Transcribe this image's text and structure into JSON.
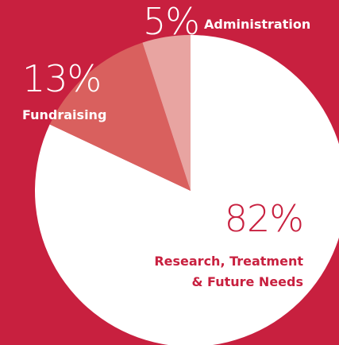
{
  "chart_data": {
    "type": "pie",
    "categories": [
      "Research, Treatment & Future Needs",
      "Fundraising",
      "Administration"
    ],
    "values": [
      82,
      13,
      5
    ],
    "value_labels": [
      "82%",
      "13%",
      "5%"
    ],
    "colors": [
      "#ffffff",
      "#d9605e",
      "#e8a4a1"
    ]
  }
}
